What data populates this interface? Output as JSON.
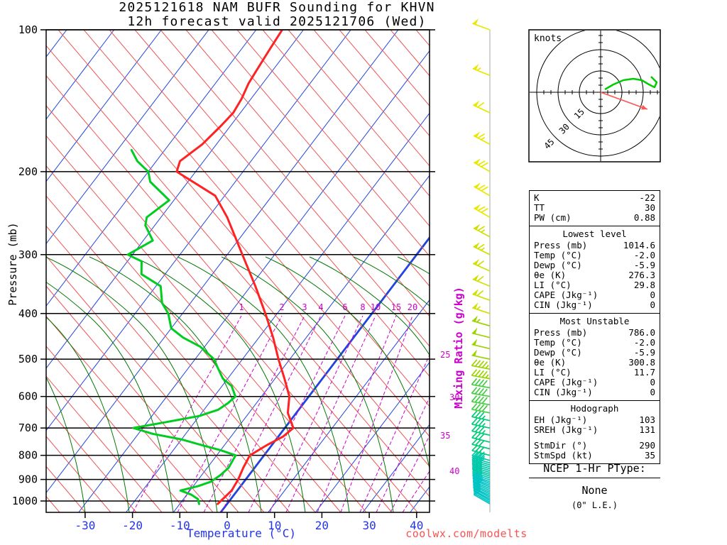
{
  "title": {
    "line1": "2025121618 NAM BUFR Sounding for KHVN",
    "line2": "12h forecast valid 2025121706 (Wed)"
  },
  "watermark": "coolwx.com/modelts",
  "axes": {
    "pressure_label": "Pressure (mb)",
    "temperature_label": "Temperature (°C)",
    "mixing_ratio_label": "Mixing Ratio (g/kg)",
    "pressure_ticks": [
      100,
      200,
      300,
      400,
      500,
      600,
      700,
      800,
      900,
      1000
    ],
    "temperature_ticks": [
      -30,
      -20,
      -10,
      0,
      10,
      20,
      30,
      40
    ],
    "mixing_ratio_inline_labels": [
      "1",
      "2",
      "3",
      "4",
      "6",
      "8",
      "10",
      "15",
      "20"
    ],
    "mixing_ratio_right_labels": [
      "25",
      "30",
      "35",
      "40"
    ]
  },
  "hodograph": {
    "unit_label": "knots",
    "ring_labels": [
      "15",
      "30",
      "45"
    ]
  },
  "stats": {
    "indices": [
      [
        "K",
        "-22"
      ],
      [
        "TT",
        "30"
      ],
      [
        "PW (cm)",
        "0.88"
      ]
    ],
    "lowest": {
      "header": "Lowest level",
      "rows": [
        [
          "Press (mb)",
          "1014.6"
        ],
        [
          "Temp (°C)",
          "-2.0"
        ],
        [
          "Dewp (°C)",
          "-5.9"
        ],
        [
          "θe (K)",
          "276.3"
        ],
        [
          "LI (°C)",
          "29.8"
        ],
        [
          "CAPE (Jkg⁻¹)",
          "0"
        ],
        [
          "CIN (Jkg⁻¹)",
          "0"
        ]
      ]
    },
    "most_unstable": {
      "header": "Most Unstable",
      "rows": [
        [
          "Press (mb)",
          "786.0"
        ],
        [
          "Temp (°C)",
          "-2.0"
        ],
        [
          "Dewp (°C)",
          "-5.9"
        ],
        [
          "θe (K)",
          "300.8"
        ],
        [
          "LI (°C)",
          "11.7"
        ],
        [
          "CAPE (Jkg⁻¹)",
          "0"
        ],
        [
          "CIN (Jkg⁻¹)",
          "0"
        ]
      ]
    },
    "hodo": {
      "header": "Hodograph",
      "rows": [
        [
          "EH (Jkg⁻¹)",
          "103"
        ],
        [
          "SREH (Jkg⁻¹)",
          "131"
        ],
        [
          "StmDir (°)",
          "290"
        ],
        [
          "StmSpd (kt)",
          "35"
        ]
      ]
    }
  },
  "ptype": {
    "heading": "NCEP 1-Hr PType:",
    "value": "None",
    "note": "(0\" L.E.)"
  },
  "chart_data": {
    "type": "line",
    "subtype": "skew-t-log-p-sounding",
    "title": "2025121618 NAM BUFR Sounding for KHVN",
    "subtitle": "12h forecast valid 2025121706 (Wed)",
    "xlabel": "Temperature (°C)",
    "ylabel": "Pressure (mb)",
    "x_range_c": [
      -40,
      45
    ],
    "pressure_range_mb": [
      100,
      1050
    ],
    "pressure_scale": "log",
    "grid": "skew-t background (isotherms, dry/moist adiabats, mixing ratio lines)",
    "highlighted_isotherm_c": 0,
    "series": [
      {
        "name": "temperature",
        "color": "#ff2222",
        "points_p_mb_t_c": [
          [
            1014.6,
            -2.0
          ],
          [
            1000,
            -1.8
          ],
          [
            950,
            -1.2
          ],
          [
            900,
            -1.6
          ],
          [
            850,
            -2.4
          ],
          [
            800,
            -3.0
          ],
          [
            760,
            -1.0
          ],
          [
            730,
            1.0
          ],
          [
            700,
            1.8
          ],
          [
            650,
            -1.8
          ],
          [
            600,
            -4.1
          ],
          [
            550,
            -8.0
          ],
          [
            500,
            -12.4
          ],
          [
            450,
            -17.0
          ],
          [
            400,
            -22.5
          ],
          [
            350,
            -29.0
          ],
          [
            300,
            -36.8
          ],
          [
            250,
            -46.0
          ],
          [
            225,
            -52.0
          ],
          [
            200,
            -64.0
          ],
          [
            190,
            -65.0
          ],
          [
            175,
            -63.0
          ],
          [
            160,
            -62.0
          ],
          [
            150,
            -61.5
          ],
          [
            140,
            -62.0
          ],
          [
            130,
            -63.0
          ],
          [
            120,
            -63.5
          ],
          [
            110,
            -64.0
          ],
          [
            100,
            -64.5
          ]
        ]
      },
      {
        "name": "dewpoint",
        "color": "#00cc22",
        "points_p_mb_t_c": [
          [
            1014.6,
            -5.9
          ],
          [
            990,
            -7.0
          ],
          [
            970,
            -9.0
          ],
          [
            950,
            -12.0
          ],
          [
            930,
            -9.0
          ],
          [
            910,
            -7.0
          ],
          [
            880,
            -6.0
          ],
          [
            850,
            -5.5
          ],
          [
            820,
            -5.8
          ],
          [
            800,
            -6.0
          ],
          [
            780,
            -10.0
          ],
          [
            760,
            -15.0
          ],
          [
            740,
            -20.0
          ],
          [
            720,
            -27.0
          ],
          [
            700,
            -32.0
          ],
          [
            680,
            -26.0
          ],
          [
            660,
            -20.0
          ],
          [
            640,
            -17.0
          ],
          [
            620,
            -16.0
          ],
          [
            600,
            -15.5
          ],
          [
            570,
            -18.0
          ],
          [
            550,
            -21.0
          ],
          [
            520,
            -24.0
          ],
          [
            500,
            -26.0
          ],
          [
            470,
            -31.0
          ],
          [
            450,
            -36.0
          ],
          [
            430,
            -40.0
          ],
          [
            400,
            -43.0
          ],
          [
            380,
            -46.0
          ],
          [
            350,
            -49.0
          ],
          [
            330,
            -55.0
          ],
          [
            310,
            -57.0
          ],
          [
            300,
            -61.0
          ],
          [
            280,
            -58.0
          ],
          [
            260,
            -62.0
          ],
          [
            250,
            -63.0
          ],
          [
            230,
            -61.0
          ],
          [
            210,
            -68.0
          ],
          [
            200,
            -70.0
          ],
          [
            190,
            -74.0
          ],
          [
            180,
            -77.0
          ]
        ]
      }
    ],
    "wind_barbs_p_dir_spd": [
      [
        1014,
        300,
        10
      ],
      [
        1006,
        300,
        10
      ],
      [
        998,
        300,
        12
      ],
      [
        990,
        298,
        12
      ],
      [
        982,
        298,
        14
      ],
      [
        974,
        296,
        15
      ],
      [
        966,
        296,
        15
      ],
      [
        958,
        295,
        16
      ],
      [
        950,
        295,
        18
      ],
      [
        942,
        294,
        18
      ],
      [
        934,
        294,
        20
      ],
      [
        926,
        292,
        20
      ],
      [
        918,
        292,
        20
      ],
      [
        910,
        290,
        22
      ],
      [
        902,
        290,
        22
      ],
      [
        894,
        290,
        24
      ],
      [
        886,
        290,
        24
      ],
      [
        878,
        288,
        25
      ],
      [
        870,
        288,
        25
      ],
      [
        862,
        288,
        26
      ],
      [
        854,
        287,
        26
      ],
      [
        846,
        287,
        28
      ],
      [
        838,
        286,
        28
      ],
      [
        830,
        286,
        30
      ],
      [
        820,
        285,
        30
      ],
      [
        800,
        285,
        30
      ],
      [
        775,
        284,
        32
      ],
      [
        750,
        284,
        32
      ],
      [
        725,
        283,
        34
      ],
      [
        700,
        282,
        35
      ],
      [
        675,
        282,
        36
      ],
      [
        650,
        281,
        38
      ],
      [
        625,
        280,
        40
      ],
      [
        600,
        280,
        40
      ],
      [
        575,
        280,
        42
      ],
      [
        550,
        280,
        45
      ],
      [
        525,
        281,
        46
      ],
      [
        500,
        282,
        48
      ],
      [
        475,
        283,
        50
      ],
      [
        450,
        284,
        52
      ],
      [
        425,
        286,
        54
      ],
      [
        400,
        288,
        55
      ],
      [
        375,
        290,
        58
      ],
      [
        350,
        292,
        60
      ],
      [
        325,
        294,
        62
      ],
      [
        300,
        296,
        65
      ],
      [
        275,
        298,
        66
      ],
      [
        250,
        300,
        68
      ],
      [
        225,
        300,
        70
      ],
      [
        200,
        300,
        70
      ],
      [
        175,
        298,
        65
      ],
      [
        150,
        295,
        60
      ],
      [
        125,
        292,
        55
      ],
      [
        100,
        290,
        50
      ]
    ],
    "hodograph_trace_uv_kt": [
      [
        3,
        2
      ],
      [
        9,
        5.5
      ],
      [
        16,
        8.5
      ],
      [
        23,
        9.5
      ],
      [
        29,
        8.5
      ],
      [
        34,
        5.5
      ],
      [
        38,
        3.5
      ],
      [
        39.5,
        7
      ],
      [
        35.5,
        11
      ]
    ],
    "storm_motion": {
      "dir_deg": 290,
      "spd_kt": 35
    }
  }
}
